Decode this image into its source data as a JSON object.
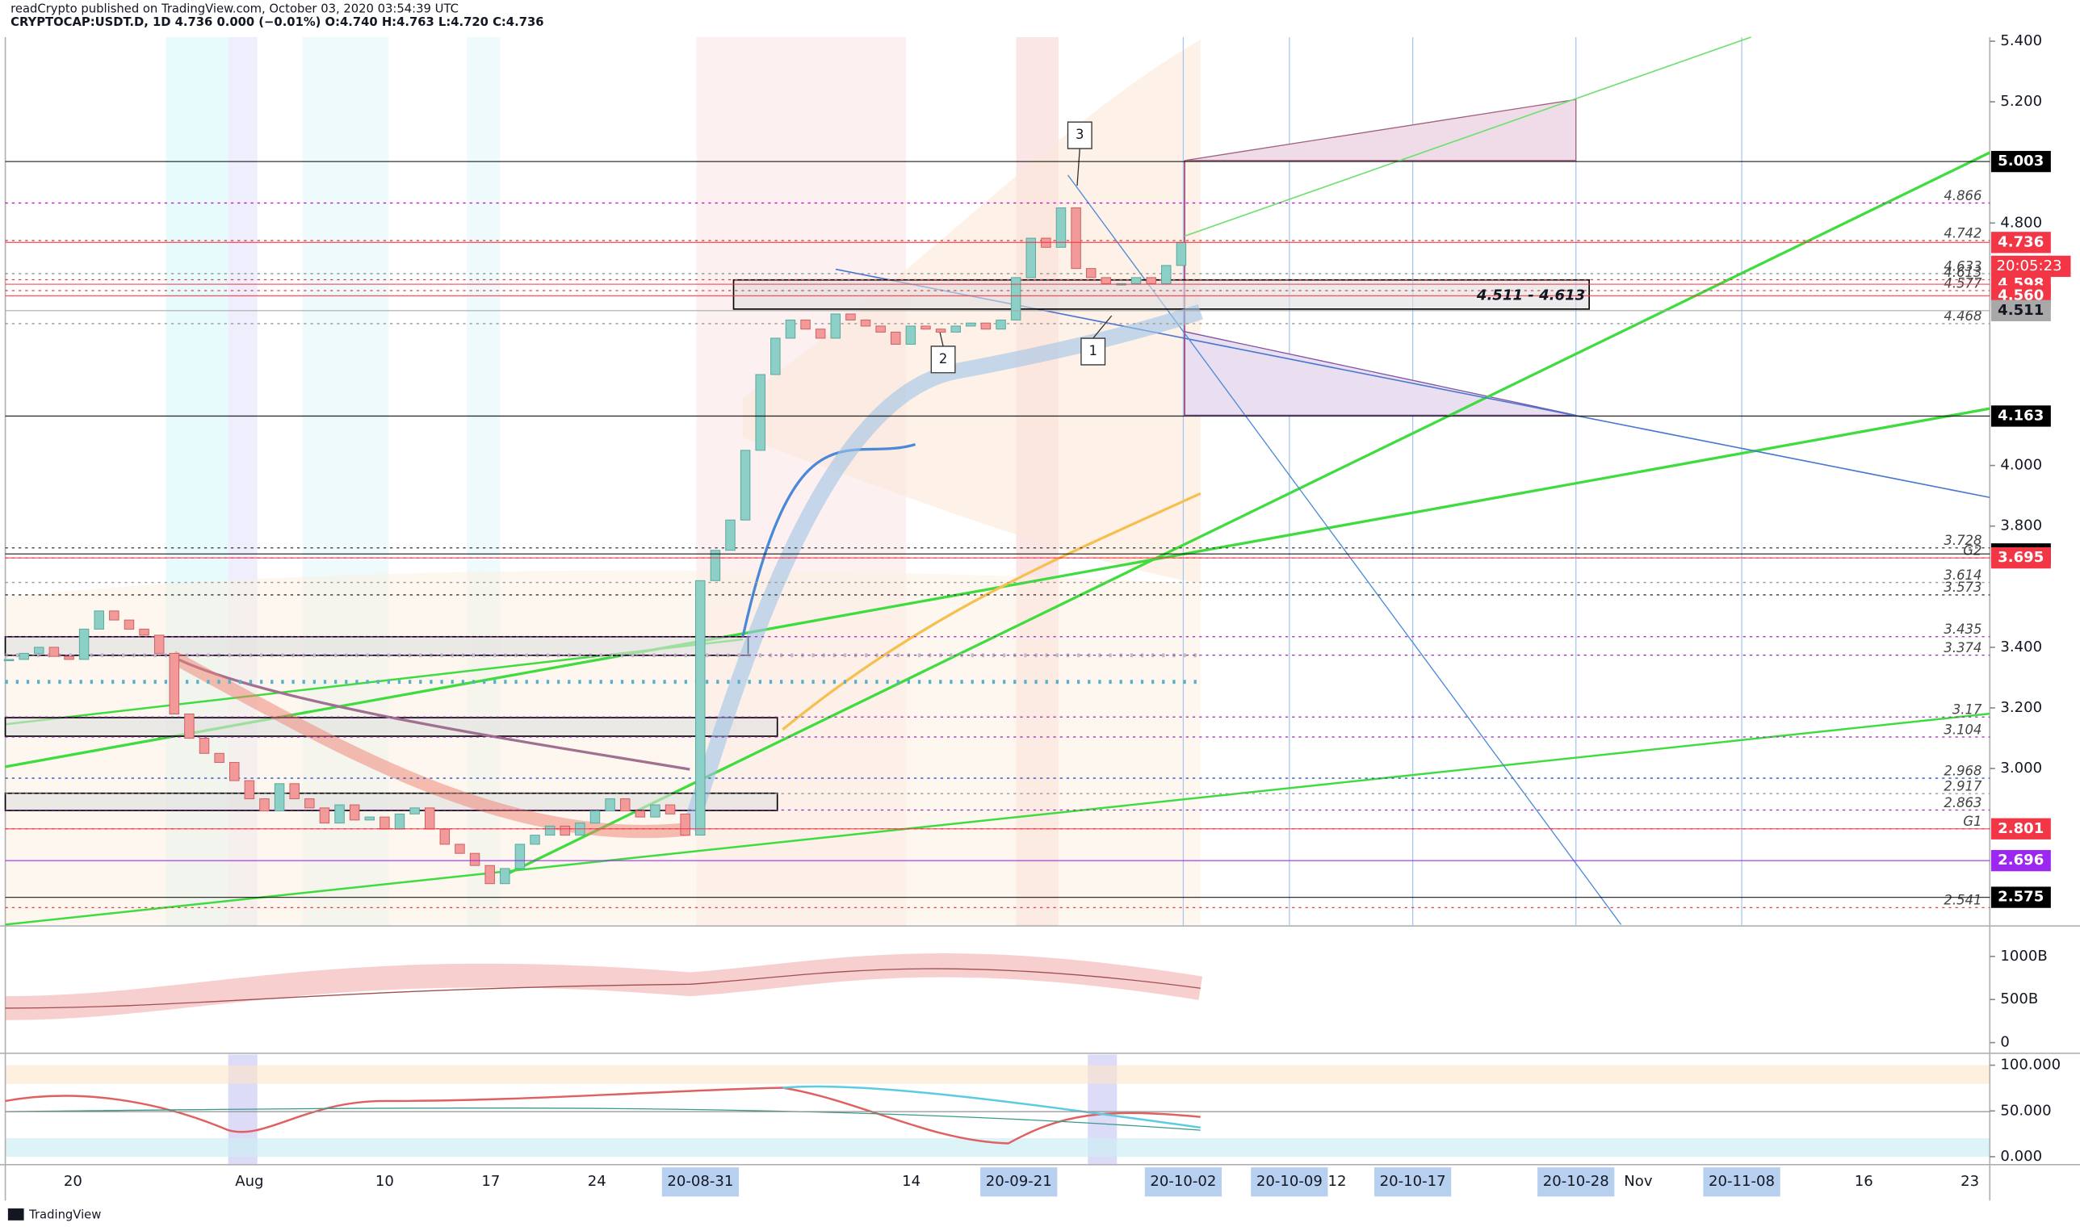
{
  "header": {
    "line1": "readCrypto published on TradingView.com, October 03, 2020 03:54:39 UTC",
    "line2": "CRYPTOCAP:USDT.D, 1D 4.736 0.000 (−0.01%) O:4.740 H:4.763 L:4.720 C:4.736"
  },
  "chart_data": {
    "type": "candlestick",
    "values": [
      3.36,
      3.38,
      3.4,
      3.37,
      3.36,
      3.46,
      3.52,
      3.49,
      3.46,
      3.44,
      3.38,
      3.18,
      3.1,
      3.05,
      3.02,
      2.96,
      2.9,
      2.86,
      2.95,
      2.9,
      2.87,
      2.82,
      2.88,
      2.83,
      2.84,
      2.8,
      2.85,
      2.87,
      2.8,
      2.75,
      2.72,
      2.68,
      2.62,
      2.67,
      2.75,
      2.78,
      2.81,
      2.78,
      2.82,
      2.86,
      2.9,
      2.86,
      2.84,
      2.88,
      2.85,
      2.78,
      3.62,
      3.72,
      3.82,
      4.05,
      4.3,
      4.42,
      4.48,
      4.45,
      4.42,
      4.5,
      4.48,
      4.46,
      4.44,
      4.4,
      4.46,
      4.45,
      4.44,
      4.46,
      4.47,
      4.45,
      4.48,
      4.62,
      4.75,
      4.72,
      4.85,
      4.65,
      4.62,
      4.6,
      4.6,
      4.62,
      4.6,
      4.66,
      4.736
    ],
    "up_color": "#8ccfc6",
    "down_color": "#f29a9a",
    "ylim": [
      2.485,
      5.536
    ],
    "yticks": [
      {
        "value": 5.4,
        "label": "5.400"
      },
      {
        "value": 5.2,
        "label": "5.200"
      },
      {
        "value": 4.8,
        "label": "4.800"
      },
      {
        "value": 4.0,
        "label": "4.000"
      },
      {
        "value": 3.8,
        "label": "3.800"
      },
      {
        "value": 3.4,
        "label": "3.400"
      },
      {
        "value": 3.2,
        "label": "3.200"
      },
      {
        "value": 3.0,
        "label": "3.000"
      }
    ],
    "x_labels": [
      "20",
      "Aug",
      "10",
      "17",
      "24",
      "20-08-31",
      "14",
      "20-09-21",
      "20-10-02",
      "20-10-09",
      "12",
      "20-10-17",
      "20-10-28",
      "Nov",
      "20-11-08",
      "16",
      "23"
    ],
    "price_tags": [
      {
        "value": 5.003,
        "label": "5.003",
        "color": "#000000"
      },
      {
        "value": 4.736,
        "label": "4.736",
        "color": "#f23645"
      },
      {
        "value": 4.598,
        "label": "4.598",
        "color": "#f23645"
      },
      {
        "value": 4.56,
        "label": "4.560",
        "color": "#f23645"
      },
      {
        "value": 4.511,
        "label": "4.511",
        "color": "#a8a8a8"
      },
      {
        "value": 4.163,
        "label": "4.163",
        "color": "#000000"
      },
      {
        "value": 3.708,
        "label": "3.708",
        "color": "#000000"
      },
      {
        "value": 3.695,
        "label": "3.695",
        "color": "#f23645"
      },
      {
        "value": 2.801,
        "label": "2.801",
        "color": "#f23645"
      },
      {
        "value": 2.696,
        "label": "2.696",
        "color": "#9c27f0"
      },
      {
        "value": 2.575,
        "label": "2.575",
        "color": "#000000"
      }
    ],
    "countdown": "20:05:23",
    "levels": [
      {
        "value": 4.866,
        "label": "4.866",
        "color": "#c000c0"
      },
      {
        "value": 4.742,
        "label": "4.742",
        "color": "#e04040"
      },
      {
        "value": 4.633,
        "label": "4.633",
        "color": "#888888"
      },
      {
        "value": 4.613,
        "label": "4.613",
        "color": "#e04040"
      },
      {
        "value": 4.577,
        "label": "4.577",
        "color": "#e04040"
      },
      {
        "value": 4.468,
        "label": "4.468",
        "color": "#999999"
      },
      {
        "value": 3.728,
        "label": "3.728",
        "color": "#333333"
      },
      {
        "value": 3.695,
        "label": "G2",
        "color": "#e04040"
      },
      {
        "value": 3.614,
        "label": "3.614",
        "color": "#999999"
      },
      {
        "value": 3.573,
        "label": "3.573",
        "color": "#333333"
      },
      {
        "value": 3.435,
        "label": "3.435",
        "color": "#9c27b0"
      },
      {
        "value": 3.374,
        "label": "3.374",
        "color": "#9c27b0"
      },
      {
        "value": 3.17,
        "label": "3.17",
        "color": "#9c27b0"
      },
      {
        "value": 3.104,
        "label": "3.104",
        "color": "#9c27b0"
      },
      {
        "value": 2.968,
        "label": "2.968",
        "color": "#3050c0"
      },
      {
        "value": 2.917,
        "label": "2.917",
        "color": "#999999"
      },
      {
        "value": 2.863,
        "label": "2.863",
        "color": "#9c27b0"
      },
      {
        "value": 2.801,
        "label": "G1",
        "color": "#e04040"
      },
      {
        "value": 2.541,
        "label": "2.541",
        "color": "#e04040"
      }
    ],
    "zone_label": "4.511 - 4.613",
    "callouts": [
      "1",
      "2",
      "3"
    ],
    "volume": {
      "ylim": [
        -108,
        1323
      ],
      "yticks": [
        {
          "value": 1000,
          "label": "1000B"
        },
        {
          "value": 500,
          "label": "500B"
        },
        0
      ]
    },
    "oscillator": {
      "ylim": [
        -8.7,
        111.6
      ],
      "yticks": [
        {
          "value": 100,
          "label": "100.000"
        },
        {
          "value": 50,
          "label": "50.000"
        },
        {
          "value": 0,
          "label": "0.000"
        }
      ]
    }
  },
  "footer": "TradingView"
}
